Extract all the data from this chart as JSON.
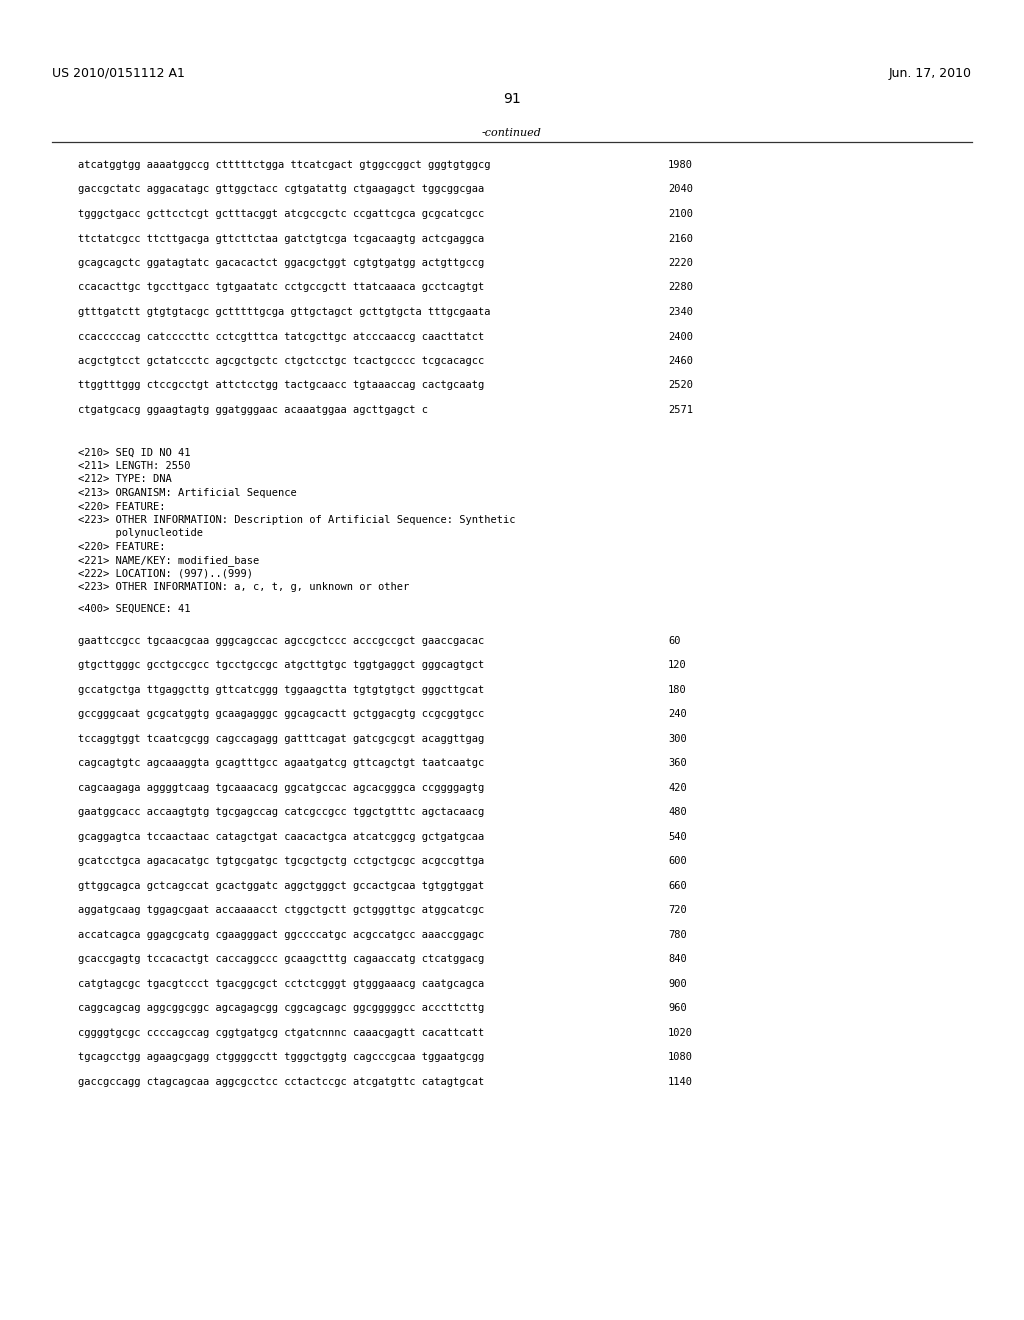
{
  "header_left": "US 2010/0151112 A1",
  "header_right": "Jun. 17, 2010",
  "page_number": "91",
  "continued_label": "-continued",
  "background_color": "#ffffff",
  "text_color": "#000000",
  "sequence_lines_top": [
    [
      "atcatggtgg aaaatggccg ctttttctgga ttcatcgact gtggccggct gggtgtggcg",
      "1980"
    ],
    [
      "gaccgctatc aggacatagc gttggctacc cgtgatattg ctgaagagct tggcggcgaa",
      "2040"
    ],
    [
      "tgggctgacc gcttcctcgt gctttacggt atcgccgctc ccgattcgca gcgcatcgcc",
      "2100"
    ],
    [
      "ttctatcgcc ttcttgacga gttcttctaa gatctgtcga tcgacaagtg actcgaggca",
      "2160"
    ],
    [
      "gcagcagctc ggatagtatc gacacactct ggacgctggt cgtgtgatgg actgttgccg",
      "2220"
    ],
    [
      "ccacacttgc tgccttgacc tgtgaatatc cctgccgctt ttatcaaaca gcctcagtgt",
      "2280"
    ],
    [
      "gtttgatctt gtgtgtacgc gctttttgcga gttgctagct gcttgtgcta tttgcgaata",
      "2340"
    ],
    [
      "ccacccccag catccccttc cctcgtttca tatcgcttgc atcccaaccg caacttatct",
      "2400"
    ],
    [
      "acgctgtcct gctatccctc agcgctgctc ctgctcctgc tcactgcccc tcgcacagcc",
      "2460"
    ],
    [
      "ttggtttggg ctccgcctgt attctcctgg tactgcaacc tgtaaaccag cactgcaatg",
      "2520"
    ],
    [
      "ctgatgcacg ggaagtagtg ggatgggaac acaaatggaa agcttgagct c",
      "2571"
    ]
  ],
  "metadata_lines": [
    "<210> SEQ ID NO 41",
    "<211> LENGTH: 2550",
    "<212> TYPE: DNA",
    "<213> ORGANISM: Artificial Sequence",
    "<220> FEATURE:",
    "<223> OTHER INFORMATION: Description of Artificial Sequence: Synthetic",
    "      polynucleotide",
    "<220> FEATURE:",
    "<221> NAME/KEY: modified_base",
    "<222> LOCATION: (997)..(999)",
    "<223> OTHER INFORMATION: a, c, t, g, unknown or other",
    "",
    "<400> SEQUENCE: 41"
  ],
  "sequence_lines_bottom": [
    [
      "gaattccgcc tgcaacgcaa gggcagccac agccgctccc acccgccgct gaaccgacac",
      "60"
    ],
    [
      "gtgcttgggc gcctgccgcc tgcctgccgc atgcttgtgc tggtgaggct gggcagtgct",
      "120"
    ],
    [
      "gccatgctga ttgaggcttg gttcatcggg tggaagctta tgtgtgtgct gggcttgcat",
      "180"
    ],
    [
      "gccgggcaat gcgcatggtg gcaagagggc ggcagcactt gctggacgtg ccgcggtgcc",
      "240"
    ],
    [
      "tccaggtggt tcaatcgcgg cagccagagg gatttcagat gatcgcgcgt acaggttgag",
      "300"
    ],
    [
      "cagcagtgtc agcaaaggta gcagtttgcc agaatgatcg gttcagctgt taatcaatgc",
      "360"
    ],
    [
      "cagcaagaga aggggtcaag tgcaaacacg ggcatgccac agcacgggca ccggggagtg",
      "420"
    ],
    [
      "gaatggcacc accaagtgtg tgcgagccag catcgccgcc tggctgtttc agctacaacg",
      "480"
    ],
    [
      "gcaggagtca tccaactaac catagctgat caacactgca atcatcggcg gctgatgcaa",
      "540"
    ],
    [
      "gcatcctgca agacacatgc tgtgcgatgc tgcgctgctg cctgctgcgc acgccgttga",
      "600"
    ],
    [
      "gttggcagca gctcagccat gcactggatc aggctgggct gccactgcaa tgtggtggat",
      "660"
    ],
    [
      "aggatgcaag tggagcgaat accaaaacct ctggctgctt gctgggttgc atggcatcgc",
      "720"
    ],
    [
      "accatcagca ggagcgcatg cgaagggact ggccccatgc acgccatgcc aaaccggagc",
      "780"
    ],
    [
      "gcaccgagtg tccacactgt caccaggccc gcaagctttg cagaaccatg ctcatggacg",
      "840"
    ],
    [
      "catgtagcgc tgacgtccct tgacggcgct cctctcgggt gtgggaaacg caatgcagca",
      "900"
    ],
    [
      "caggcagcag aggcggcggc agcagagcgg cggcagcagc ggcgggggcc acccttcttg",
      "960"
    ],
    [
      "cggggtgcgc ccccagccag cggtgatgcg ctgatcnnnc caaacgagtt cacattcatt",
      "1020"
    ],
    [
      "tgcagcctgg agaagcgagg ctggggcctt tgggctggtg cagcccgcaa tggaatgcgg",
      "1080"
    ],
    [
      "gaccgccagg ctagcagcaa aggcgcctcc cctactccgc atcgatgttc catagtgcat",
      "1140"
    ]
  ]
}
